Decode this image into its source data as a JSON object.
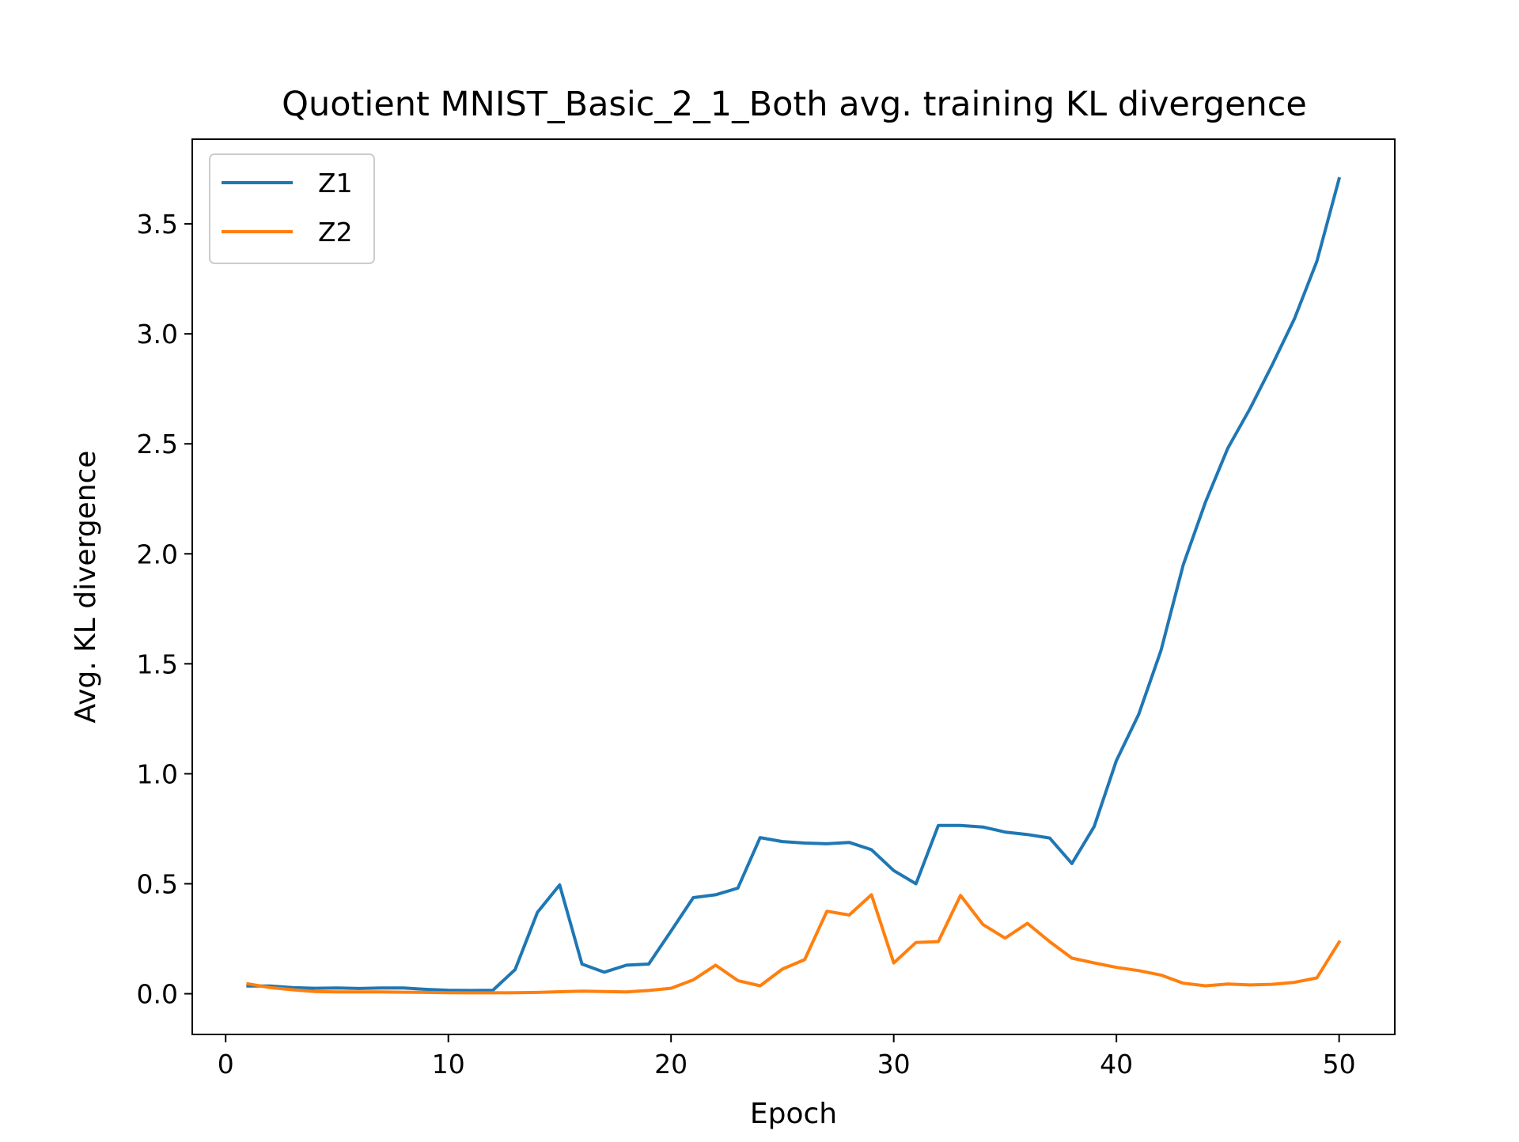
{
  "chart_data": {
    "type": "line",
    "title": "Quotient MNIST_Basic_2_1_Both avg. training KL divergence",
    "xlabel": "Epoch",
    "ylabel": "Avg. KL divergence",
    "xlim": [
      -1.5,
      52.5
    ],
    "ylim": [
      -0.185,
      3.885
    ],
    "xticks": [
      0,
      10,
      20,
      30,
      40,
      50
    ],
    "xtick_labels": [
      "0",
      "10",
      "20",
      "30",
      "40",
      "50"
    ],
    "yticks": [
      0.0,
      0.5,
      1.0,
      1.5,
      2.0,
      2.5,
      3.0,
      3.5
    ],
    "ytick_labels": [
      "0.0",
      "0.5",
      "1.0",
      "1.5",
      "2.0",
      "2.5",
      "3.0",
      "3.5"
    ],
    "grid": false,
    "legend_position": "top-left",
    "x": [
      1,
      2,
      3,
      4,
      5,
      6,
      7,
      8,
      9,
      10,
      11,
      12,
      13,
      14,
      15,
      16,
      17,
      18,
      19,
      20,
      21,
      22,
      23,
      24,
      25,
      26,
      27,
      28,
      29,
      30,
      31,
      32,
      33,
      34,
      35,
      36,
      37,
      38,
      39,
      40,
      41,
      42,
      43,
      44,
      45,
      46,
      47,
      48,
      49,
      50
    ],
    "series": [
      {
        "name": "Z1",
        "color": "#1f77b4",
        "values": [
          0.035,
          0.035,
          0.028,
          0.025,
          0.026,
          0.024,
          0.026,
          0.026,
          0.02,
          0.016,
          0.015,
          0.016,
          0.11,
          0.37,
          0.495,
          0.135,
          0.098,
          0.13,
          0.135,
          0.285,
          0.437,
          0.45,
          0.48,
          0.71,
          0.692,
          0.685,
          0.682,
          0.688,
          0.655,
          0.56,
          0.5,
          0.765,
          0.765,
          0.758,
          0.735,
          0.724,
          0.708,
          0.592,
          0.76,
          1.06,
          1.27,
          1.56,
          1.95,
          2.235,
          2.48,
          2.66,
          2.86,
          3.07,
          3.33,
          3.705
        ]
      },
      {
        "name": "Z2",
        "color": "#ff7f0e",
        "values": [
          0.045,
          0.028,
          0.018,
          0.01,
          0.008,
          0.008,
          0.008,
          0.007,
          0.006,
          0.005,
          0.004,
          0.004,
          0.005,
          0.006,
          0.009,
          0.012,
          0.01,
          0.008,
          0.015,
          0.025,
          0.063,
          0.13,
          0.06,
          0.036,
          0.112,
          0.155,
          0.375,
          0.358,
          0.45,
          0.14,
          0.233,
          0.237,
          0.447,
          0.315,
          0.253,
          0.32,
          0.237,
          0.162,
          0.14,
          0.12,
          0.105,
          0.085,
          0.048,
          0.036,
          0.044,
          0.04,
          0.043,
          0.052,
          0.072,
          0.235
        ]
      }
    ]
  }
}
